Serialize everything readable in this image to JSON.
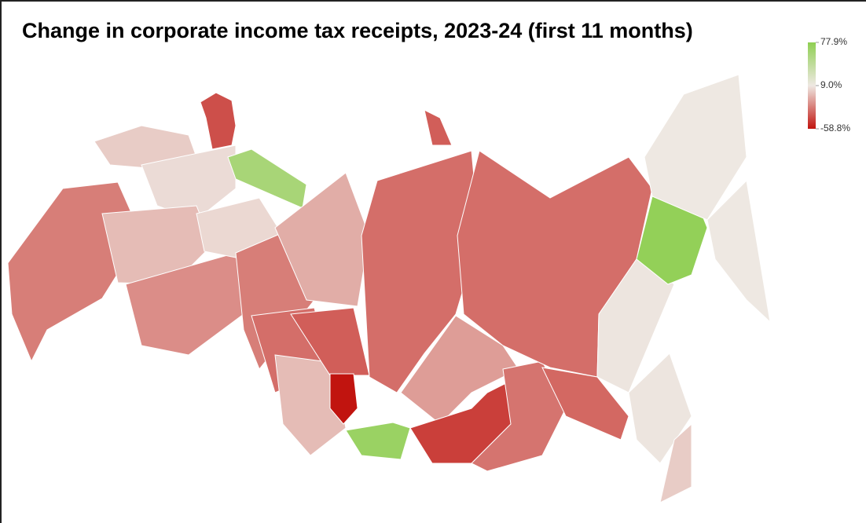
{
  "map": {
    "title": "Change in corporate income tax receipts, 2023-24 (first 11 months)",
    "legend": {
      "ticks": [
        {
          "value": 77.9,
          "label": "77.9%"
        },
        {
          "value": 9.0,
          "label": "9.0%"
        },
        {
          "value": -58.8,
          "label": "-58.8%"
        }
      ],
      "colors": [
        "#8fcf52",
        "#eee8e2",
        "#c1140f"
      ]
    },
    "regions": [
      0,
      5,
      60,
      -40,
      -25,
      -5,
      -20,
      4,
      -25,
      -10,
      -30,
      -5,
      -35,
      -58.8,
      70,
      -30,
      -15,
      -45,
      -28,
      -30,
      -32,
      8,
      75,
      9,
      9,
      8,
      0,
      -35
    ]
  }
}
